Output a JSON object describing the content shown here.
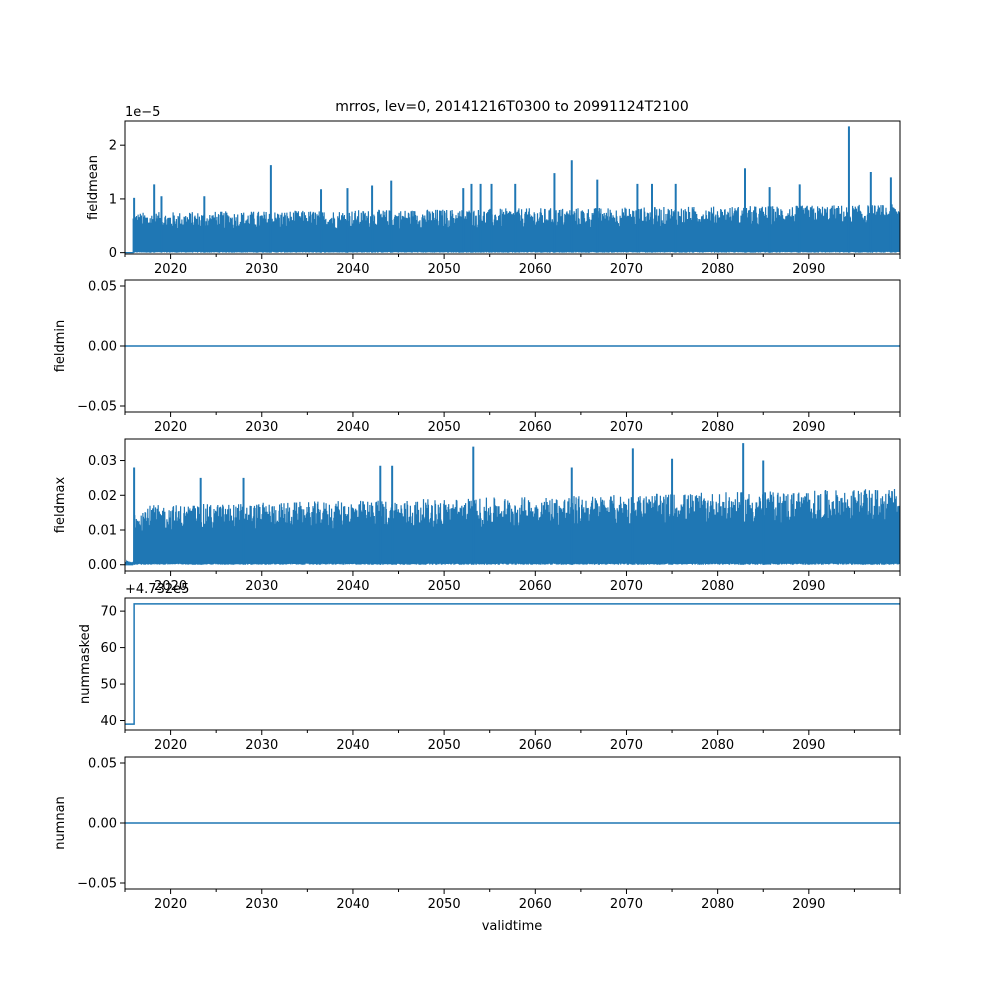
{
  "title": "mrros, lev=0, 20141216T0300 to 20991124T2100",
  "xlabel": "validtime",
  "colors": {
    "series": "#1f77b4",
    "axis": "#000000",
    "background": "#ffffff"
  },
  "chart_data": [
    {
      "type": "line",
      "ylabel": "fieldmean",
      "offset_text": "1e−5",
      "xlim": [
        2015.0,
        2100.0
      ],
      "ylim": [
        -2.5e-07,
        2.45e-05
      ],
      "xticks": [
        "2020",
        "2030",
        "2040",
        "2050",
        "2060",
        "2070",
        "2080",
        "2090"
      ],
      "yticks": [
        {
          "value": 0,
          "label": "0"
        },
        {
          "value": 1e-05,
          "label": "1"
        },
        {
          "value": 2e-05,
          "label": "2"
        }
      ],
      "series": [
        {
          "values_note_free": true,
          "baseline": 0,
          "typical_peak": 7.5e-06,
          "trend_end_peak": 9e-06
        }
      ],
      "spikes": [
        {
          "x": 2016.0,
          "y": 1.02e-05
        },
        {
          "x": 2018.2,
          "y": 1.27e-05
        },
        {
          "x": 2019.0,
          "y": 1.05e-05
        },
        {
          "x": 2023.7,
          "y": 1.05e-05
        },
        {
          "x": 2031.0,
          "y": 1.63e-05
        },
        {
          "x": 2036.5,
          "y": 1.18e-05
        },
        {
          "x": 2039.4,
          "y": 1.2e-05
        },
        {
          "x": 2042.1,
          "y": 1.25e-05
        },
        {
          "x": 2044.2,
          "y": 1.34e-05
        },
        {
          "x": 2052.1,
          "y": 1.2e-05
        },
        {
          "x": 2053.0,
          "y": 1.28e-05
        },
        {
          "x": 2054.0,
          "y": 1.28e-05
        },
        {
          "x": 2055.2,
          "y": 1.28e-05
        },
        {
          "x": 2057.8,
          "y": 1.28e-05
        },
        {
          "x": 2062.1,
          "y": 1.48e-05
        },
        {
          "x": 2064.0,
          "y": 1.72e-05
        },
        {
          "x": 2066.8,
          "y": 1.36e-05
        },
        {
          "x": 2071.2,
          "y": 1.28e-05
        },
        {
          "x": 2072.8,
          "y": 1.28e-05
        },
        {
          "x": 2075.4,
          "y": 1.28e-05
        },
        {
          "x": 2083.0,
          "y": 1.57e-05
        },
        {
          "x": 2085.7,
          "y": 1.22e-05
        },
        {
          "x": 2089.0,
          "y": 1.27e-05
        },
        {
          "x": 2094.4,
          "y": 2.35e-05
        },
        {
          "x": 2096.8,
          "y": 1.5e-05
        },
        {
          "x": 2099.0,
          "y": 1.4e-05
        }
      ]
    },
    {
      "type": "line",
      "ylabel": "fieldmin",
      "xlim": [
        2015.0,
        2100.0
      ],
      "ylim": [
        -0.055,
        0.055
      ],
      "xticks": [
        "2020",
        "2030",
        "2040",
        "2050",
        "2060",
        "2070",
        "2080",
        "2090"
      ],
      "yticks": [
        {
          "value": 0.05,
          "label": "0.05"
        },
        {
          "value": 0,
          "label": "0.00"
        },
        {
          "value": -0.05,
          "label": "−0.05"
        }
      ],
      "series": [
        {
          "constant": 0
        }
      ]
    },
    {
      "type": "line",
      "ylabel": "fieldmax",
      "xlim": [
        2015.0,
        2100.0
      ],
      "ylim": [
        -0.0018,
        0.0362
      ],
      "xticks": [
        "2020",
        "2030",
        "2040",
        "2050",
        "2060",
        "2070",
        "2080",
        "2090"
      ],
      "yticks": [
        {
          "value": 0,
          "label": "0.00"
        },
        {
          "value": 0.01,
          "label": "0.01"
        },
        {
          "value": 0.02,
          "label": "0.02"
        },
        {
          "value": 0.03,
          "label": "0.03"
        }
      ],
      "series": [
        {
          "baseline": 0,
          "typical_peak": 0.017,
          "trend_end_peak": 0.022
        }
      ],
      "spikes": [
        {
          "x": 2016.0,
          "y": 0.028
        },
        {
          "x": 2023.3,
          "y": 0.025
        },
        {
          "x": 2028.0,
          "y": 0.025
        },
        {
          "x": 2043.0,
          "y": 0.0285
        },
        {
          "x": 2044.3,
          "y": 0.0285
        },
        {
          "x": 2053.2,
          "y": 0.034
        },
        {
          "x": 2064.0,
          "y": 0.028
        },
        {
          "x": 2070.7,
          "y": 0.0335
        },
        {
          "x": 2075.0,
          "y": 0.0305
        },
        {
          "x": 2082.8,
          "y": 0.035
        },
        {
          "x": 2085.0,
          "y": 0.03
        }
      ]
    },
    {
      "type": "line",
      "ylabel": "nummasked",
      "offset_text": "+4.732e5",
      "xlim": [
        2015.0,
        2100.0
      ],
      "ylim": [
        37.4,
        73.6
      ],
      "xticks": [
        "2020",
        "2030",
        "2040",
        "2050",
        "2060",
        "2070",
        "2080",
        "2090"
      ],
      "yticks": [
        {
          "value": 40,
          "label": "40"
        },
        {
          "value": 50,
          "label": "50"
        },
        {
          "value": 60,
          "label": "60"
        },
        {
          "value": 70,
          "label": "70"
        }
      ],
      "series": [
        {
          "x": [
            2015.0,
            2016.0,
            2016.0,
            2100.0
          ],
          "y": [
            39,
            39,
            72,
            72
          ]
        }
      ]
    },
    {
      "type": "line",
      "ylabel": "numnan",
      "xlim": [
        2015.0,
        2100.0
      ],
      "ylim": [
        -0.055,
        0.055
      ],
      "xticks": [
        "2020",
        "2030",
        "2040",
        "2050",
        "2060",
        "2070",
        "2080",
        "2090"
      ],
      "yticks": [
        {
          "value": 0.05,
          "label": "0.05"
        },
        {
          "value": 0,
          "label": "0.00"
        },
        {
          "value": -0.05,
          "label": "−0.05"
        }
      ],
      "series": [
        {
          "constant": 0
        }
      ]
    }
  ]
}
